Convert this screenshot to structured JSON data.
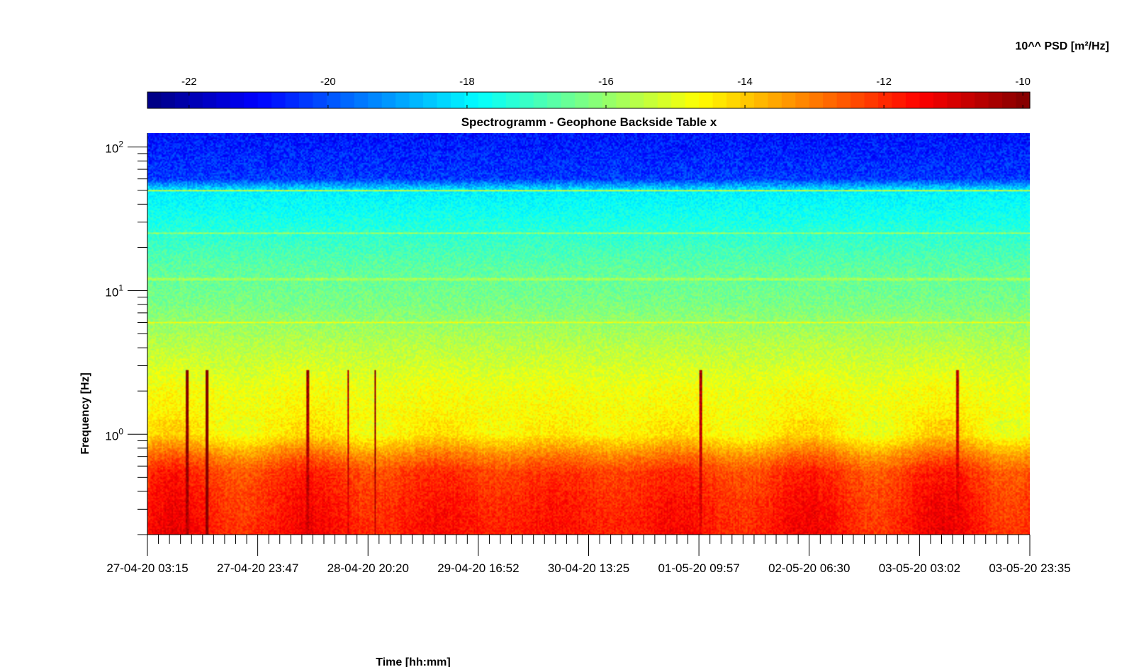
{
  "chart_data": {
    "type": "heatmap",
    "title": "Spectrogramm - Geophone Backside Table x",
    "xlabel": "Time [hh:mm]",
    "ylabel": "Frequency [Hz]",
    "colorbar": {
      "label": "10^^ PSD [m²/Hz]",
      "range": [
        -22.6,
        -9.9
      ],
      "ticks": [
        -22,
        -20,
        -18,
        -16,
        -14,
        -12,
        -10
      ],
      "tick_labels": [
        "-22",
        "-20",
        "-18",
        "-16",
        "-14",
        "-12",
        "-10"
      ],
      "colormap": "jet",
      "placement": "top"
    },
    "x_axis": {
      "type": "time",
      "range": [
        "27-04-20 03:15",
        "03-05-20 23:35"
      ],
      "tick_labels": [
        "27-04-20 03:15",
        "27-04-20 23:47",
        "28-04-20 20:20",
        "29-04-20 16:52",
        "30-04-20 13:25",
        "01-05-20 09:57",
        "02-05-20 06:30",
        "03-05-20 03:02",
        "03-05-20 23:35"
      ]
    },
    "y_axis": {
      "scale": "log",
      "range": [
        0.2,
        125
      ],
      "ticks": [
        1,
        10,
        100
      ],
      "tick_labels": [
        {
          "base": "10",
          "exp": "0"
        },
        {
          "base": "10",
          "exp": "1"
        },
        {
          "base": "10",
          "exp": "2"
        }
      ]
    },
    "grid": false,
    "spectral_profile": [
      {
        "freq_hz": 0.2,
        "psd_log10": -11.7
      },
      {
        "freq_hz": 0.35,
        "psd_log10": -11.9
      },
      {
        "freq_hz": 0.55,
        "psd_log10": -12.2
      },
      {
        "freq_hz": 0.7,
        "psd_log10": -13.0
      },
      {
        "freq_hz": 1.0,
        "psd_log10": -14.5
      },
      {
        "freq_hz": 2.0,
        "psd_log10": -14.8
      },
      {
        "freq_hz": 4.0,
        "psd_log10": -15.5
      },
      {
        "freq_hz": 8.0,
        "psd_log10": -16.3
      },
      {
        "freq_hz": 15.0,
        "psd_log10": -16.7
      },
      {
        "freq_hz": 30.0,
        "psd_log10": -17.5
      },
      {
        "freq_hz": 50.0,
        "psd_log10": -18.0
      },
      {
        "freq_hz": 60.0,
        "psd_log10": -20.3
      },
      {
        "freq_hz": 125.0,
        "psd_log10": -20.8
      }
    ],
    "spectral_lines": [
      {
        "freq_hz": 6.0,
        "psd_log10": -14.9
      },
      {
        "freq_hz": 25.0,
        "psd_log10": -16.0
      },
      {
        "freq_hz": 50.0,
        "psd_log10": -15.5
      },
      {
        "freq_hz": 12.0,
        "psd_log10": -15.8
      }
    ],
    "transients": [
      {
        "time": "27-04-20 10:30",
        "psd_log10": -10.5
      },
      {
        "time": "27-04-20 14:10",
        "psd_log10": -10.0
      },
      {
        "time": "28-04-20 09:00",
        "psd_log10": -11.0
      },
      {
        "time": "28-04-20 16:30",
        "psd_log10": -11.2
      },
      {
        "time": "28-04-20 21:30",
        "psd_log10": -10.8
      },
      {
        "time": "01-05-20 10:10",
        "psd_log10": -11.3
      },
      {
        "time": "03-05-20 10:00",
        "psd_log10": -11.4
      }
    ]
  }
}
